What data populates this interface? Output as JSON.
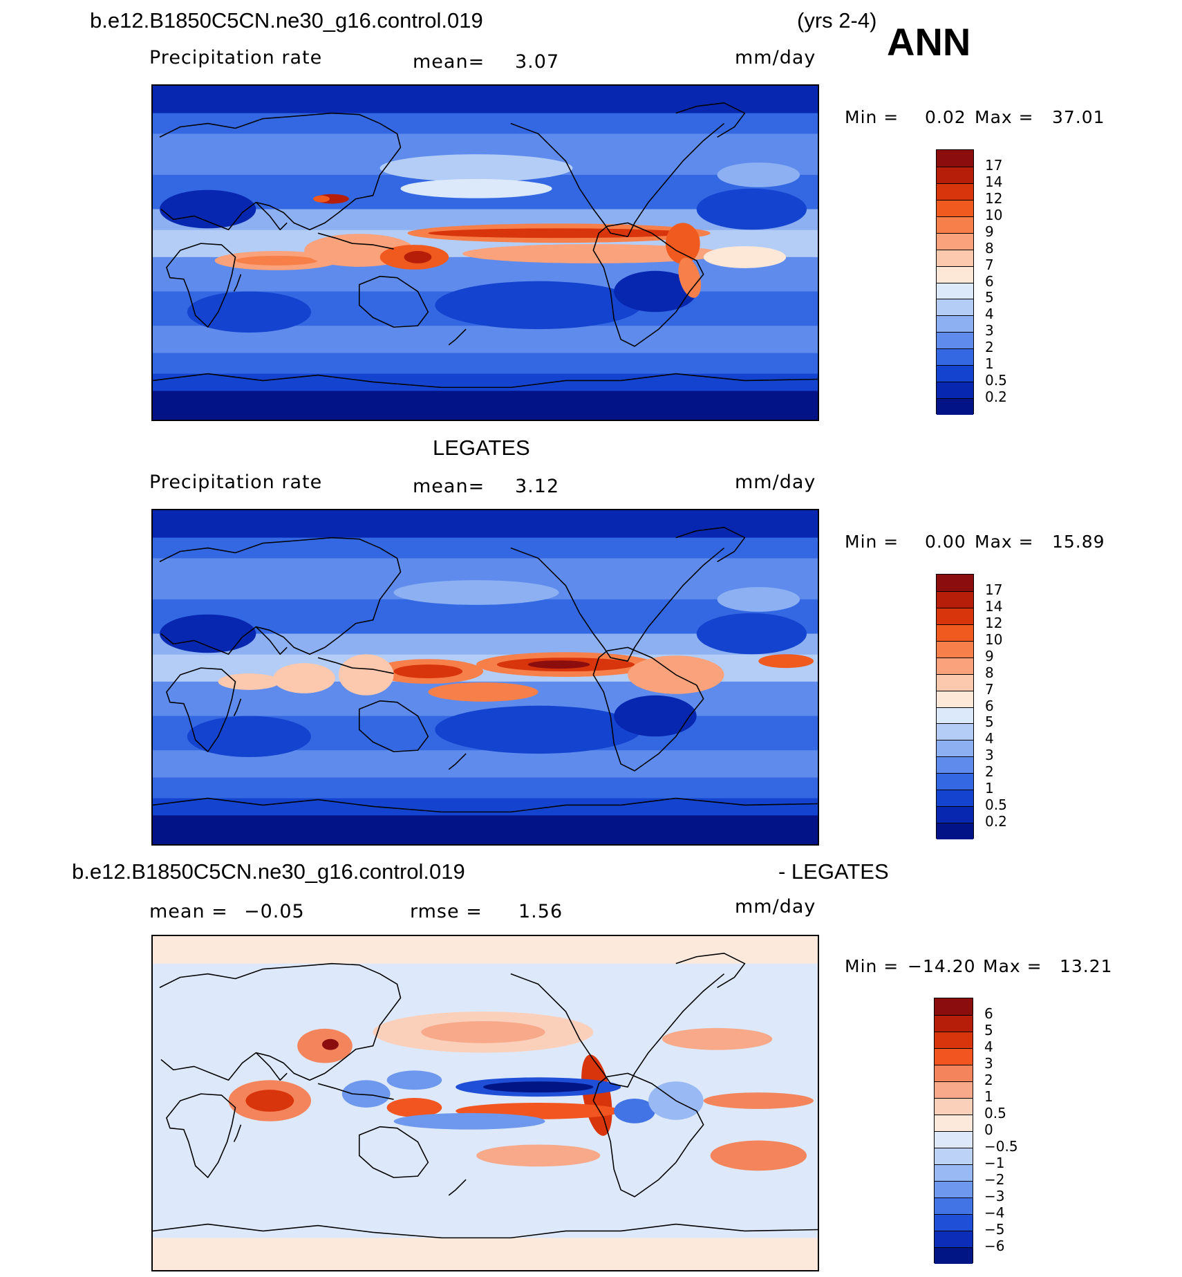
{
  "page": {
    "case_title": "b.e12.B1850C5CN.ne30_g16.control.019",
    "years": "(yrs 2-4)",
    "season": "ANN"
  },
  "panels": [
    {
      "id": "model",
      "heading": "",
      "variable": "Precipitation rate",
      "mean_label": "mean=",
      "mean_value": "3.07",
      "units": "mm/day",
      "min_label": "Min =",
      "min_value": "0.02",
      "max_label": "Max =",
      "max_value": "37.01",
      "colorbar_levels": [
        "17",
        "14",
        "12",
        "10",
        "9",
        "8",
        "7",
        "6",
        "5",
        "4",
        "3",
        "2",
        "1",
        "0.5",
        "0.2"
      ],
      "colorbar_colors": [
        "#8b0d0d",
        "#b61e0a",
        "#d8350c",
        "#f05a1f",
        "#f7804a",
        "#f9a27c",
        "#fcc8ae",
        "#fde8d8",
        "#dbe9fb",
        "#b3cdf7",
        "#8cb0f2",
        "#5f8cec",
        "#3468e3",
        "#1444cf",
        "#0727b1",
        "#021388"
      ],
      "chart_data": {
        "type": "heatmap",
        "title": "Precipitation rate",
        "units": "mm/day",
        "mean": 3.07,
        "min": 0.02,
        "max": 37.01,
        "contour_levels": [
          0.2,
          0.5,
          1,
          2,
          3,
          4,
          5,
          6,
          7,
          8,
          9,
          10,
          12,
          14,
          17
        ]
      }
    },
    {
      "id": "obs",
      "heading": "LEGATES",
      "variable": "Precipitation rate",
      "mean_label": "mean=",
      "mean_value": "3.12",
      "units": "mm/day",
      "min_label": "Min =",
      "min_value": "0.00",
      "max_label": "Max =",
      "max_value": "15.89",
      "colorbar_levels": [
        "17",
        "14",
        "12",
        "10",
        "9",
        "8",
        "7",
        "6",
        "5",
        "4",
        "3",
        "2",
        "1",
        "0.5",
        "0.2"
      ],
      "colorbar_colors": [
        "#8b0d0d",
        "#b61e0a",
        "#d8350c",
        "#f05a1f",
        "#f7804a",
        "#f9a27c",
        "#fcc8ae",
        "#fde8d8",
        "#dbe9fb",
        "#b3cdf7",
        "#8cb0f2",
        "#5f8cec",
        "#3468e3",
        "#1444cf",
        "#0727b1",
        "#021388"
      ],
      "chart_data": {
        "type": "heatmap",
        "title": "LEGATES",
        "units": "mm/day",
        "mean": 3.12,
        "min": 0.0,
        "max": 15.89,
        "contour_levels": [
          0.2,
          0.5,
          1,
          2,
          3,
          4,
          5,
          6,
          7,
          8,
          9,
          10,
          12,
          14,
          17
        ]
      }
    },
    {
      "id": "diff",
      "heading_left": "b.e12.B1850C5CN.ne30_g16.control.019",
      "heading_right": "- LEGATES",
      "mean_label": "mean =",
      "mean_value": "−0.05",
      "rmse_label": "rmse =",
      "rmse_value": "1.56",
      "units": "mm/day",
      "min_label": "Min =",
      "min_value": "−14.20",
      "max_label": "Max =",
      "max_value": "13.21",
      "colorbar_levels": [
        "6",
        "5",
        "4",
        "3",
        "2",
        "1",
        "0.5",
        "0",
        "−0.5",
        "−1",
        "−2",
        "−3",
        "−4",
        "−5",
        "−6"
      ],
      "colorbar_colors": [
        "#8b0d0d",
        "#b61e0a",
        "#d8350c",
        "#f2551f",
        "#f4845b",
        "#f7a98a",
        "#fbd0bb",
        "#fde9dc",
        "#dde9fa",
        "#bcd3f7",
        "#98b9f3",
        "#6e98ee",
        "#4274e5",
        "#1f4fd6",
        "#0b2db7",
        "#021585"
      ],
      "chart_data": {
        "type": "heatmap",
        "title": "b.e12.B1850C5CN.ne30_g16.control.019 - LEGATES",
        "units": "mm/day",
        "mean": -0.05,
        "rmse": 1.56,
        "min": -14.2,
        "max": 13.21,
        "contour_levels": [
          -6,
          -5,
          -4,
          -3,
          -2,
          -1,
          -0.5,
          0,
          0.5,
          1,
          2,
          3,
          4,
          5,
          6
        ]
      }
    }
  ]
}
